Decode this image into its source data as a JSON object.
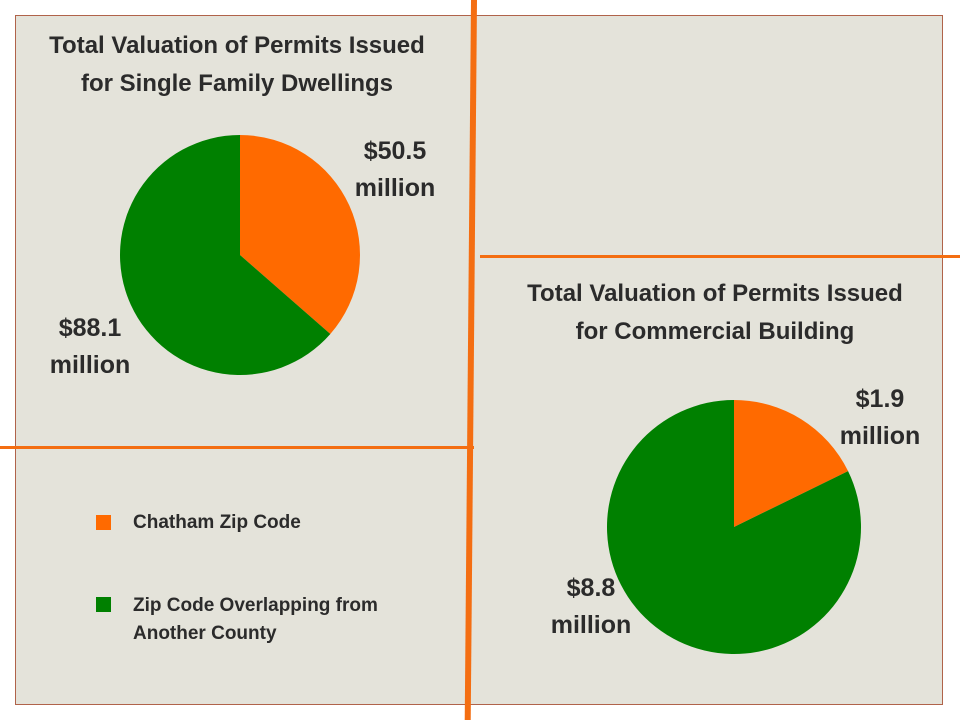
{
  "colors": {
    "chatham": "#ff6a00",
    "overlap": "#008000",
    "panel": "#e4e3da",
    "divider": "#f46e12"
  },
  "chart_data": [
    {
      "type": "pie",
      "title_line1": "Total Valuation of Permits Issued",
      "title_line2": "for Single Family Dwellings",
      "slices": [
        {
          "legend_key": "chatham",
          "value": 50.5,
          "label_line1": "$50.5",
          "label_line2": "million"
        },
        {
          "legend_key": "overlap",
          "value": 88.1,
          "label_line1": "$88.1",
          "label_line2": "million"
        }
      ]
    },
    {
      "type": "pie",
      "title_line1": "Total Valuation of Permits Issued",
      "title_line2": "for Commercial Building",
      "slices": [
        {
          "legend_key": "chatham",
          "value": 1.9,
          "label_line1": "$1.9",
          "label_line2": "million"
        },
        {
          "legend_key": "overlap",
          "value": 8.8,
          "label_line1": "$8.8",
          "label_line2": "million"
        }
      ]
    }
  ],
  "legend": {
    "items": [
      {
        "key": "chatham",
        "line1": "Chatham Zip Code",
        "line2": ""
      },
      {
        "key": "overlap",
        "line1": "Zip Code Overlapping from",
        "line2": "Another County"
      }
    ]
  }
}
